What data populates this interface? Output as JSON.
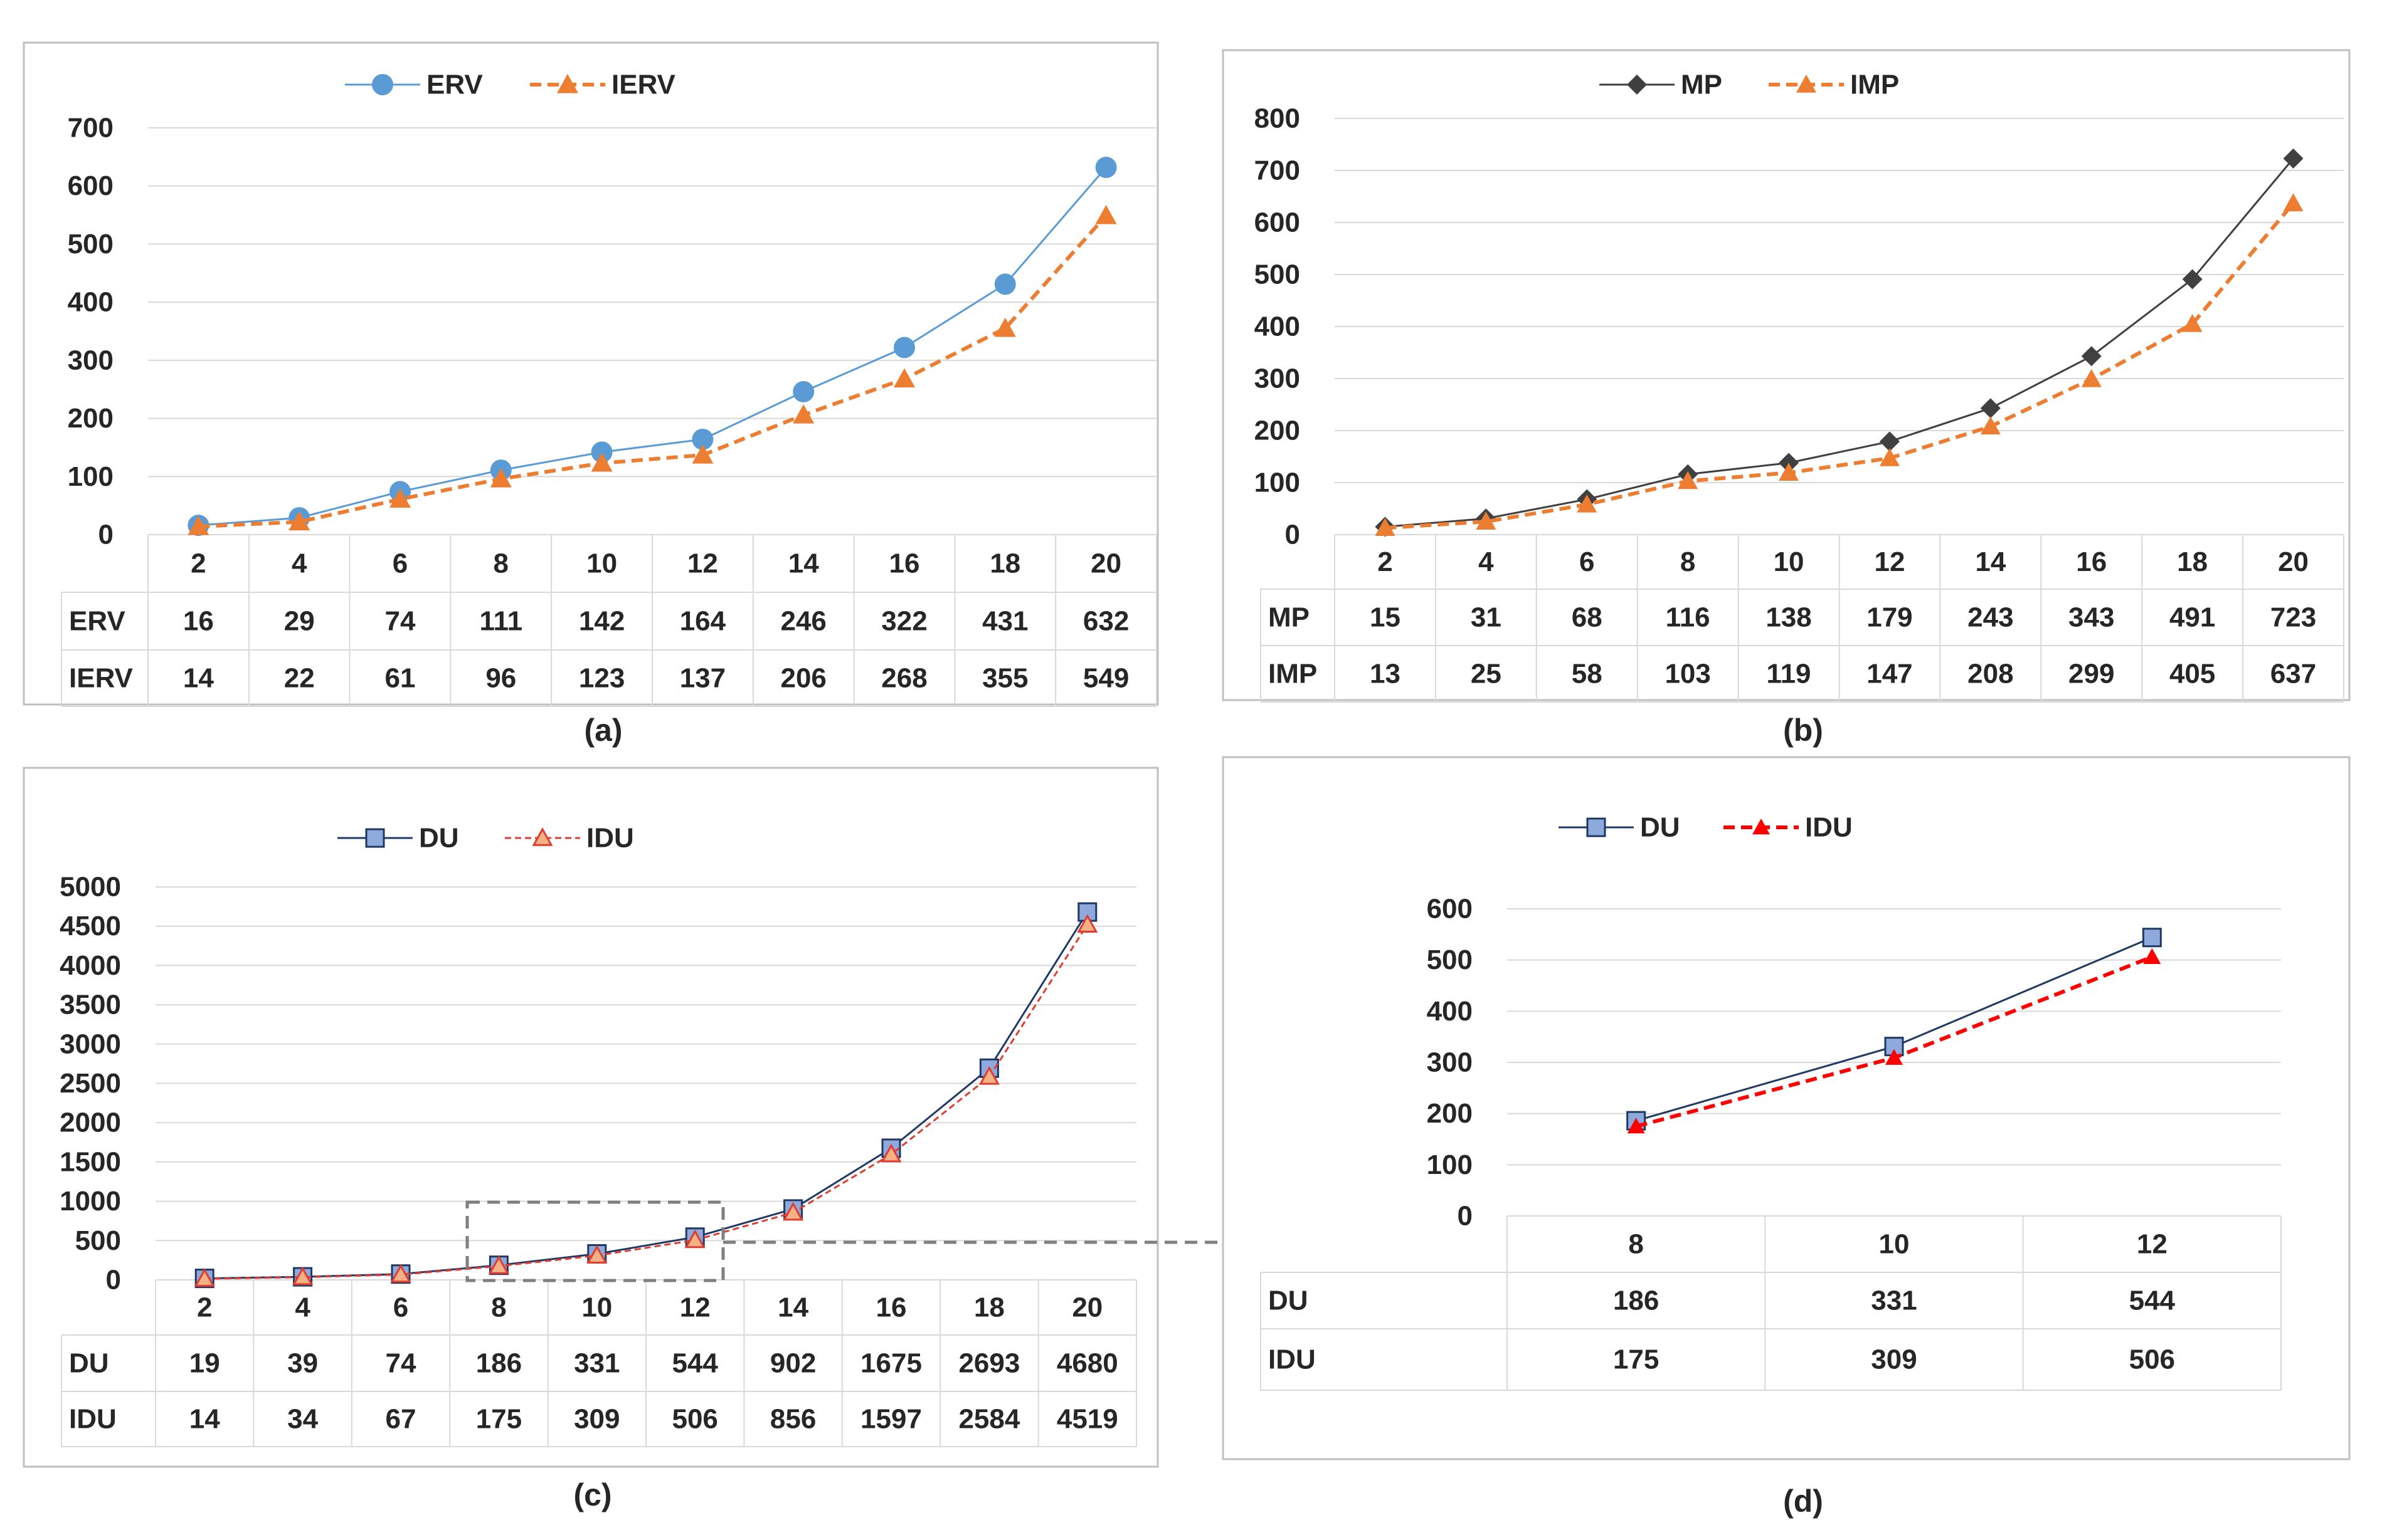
{
  "chart_data": [
    {
      "id": "a",
      "type": "line",
      "caption": "(a)",
      "categories": [
        "2",
        "4",
        "6",
        "8",
        "10",
        "12",
        "14",
        "16",
        "18",
        "20"
      ],
      "series": [
        {
          "name": "ERV",
          "values": [
            16,
            29,
            74,
            111,
            142,
            164,
            246,
            322,
            431,
            632
          ],
          "color": "#5b9bd5",
          "marker": "circle",
          "dashed": false
        },
        {
          "name": "IERV",
          "values": [
            14,
            22,
            61,
            96,
            123,
            137,
            206,
            268,
            355,
            549
          ],
          "color": "#ed7d31",
          "marker": "triangle",
          "dashed": true
        }
      ],
      "ylim": [
        0,
        700
      ],
      "yticks": [
        0,
        100,
        200,
        300,
        400,
        500,
        600,
        700
      ],
      "legend": "top",
      "grid": true,
      "data_table": true
    },
    {
      "id": "b",
      "type": "line",
      "caption": "(b)",
      "categories": [
        "2",
        "4",
        "6",
        "8",
        "10",
        "12",
        "14",
        "16",
        "18",
        "20"
      ],
      "series": [
        {
          "name": "MP",
          "values": [
            15,
            31,
            68,
            116,
            138,
            179,
            243,
            343,
            491,
            723
          ],
          "color": "#404040",
          "marker": "diamond",
          "dashed": false
        },
        {
          "name": "IMP",
          "values": [
            13,
            25,
            58,
            103,
            119,
            147,
            208,
            299,
            405,
            637
          ],
          "color": "#ed7d31",
          "marker": "triangle",
          "dashed": true
        }
      ],
      "ylim": [
        0,
        800
      ],
      "yticks": [
        0,
        100,
        200,
        300,
        400,
        500,
        600,
        700,
        800
      ],
      "legend": "top",
      "grid": true,
      "data_table": true
    },
    {
      "id": "c",
      "type": "line",
      "caption": "(c)",
      "categories": [
        "2",
        "4",
        "6",
        "8",
        "10",
        "12",
        "14",
        "16",
        "18",
        "20"
      ],
      "series": [
        {
          "name": "DU",
          "values": [
            19,
            39,
            74,
            186,
            331,
            544,
            902,
            1675,
            2693,
            4680
          ],
          "color": "#1f3864",
          "marker": "square",
          "dashed": false
        },
        {
          "name": "IDU",
          "values": [
            14,
            34,
            67,
            175,
            309,
            506,
            856,
            1597,
            2584,
            4519
          ],
          "color": "#e03c31",
          "marker": "triangle-open",
          "dashed": true
        }
      ],
      "ylim": [
        0,
        5000
      ],
      "yticks": [
        0,
        500,
        1000,
        1500,
        2000,
        2500,
        3000,
        3500,
        4000,
        4500,
        5000
      ],
      "legend": "top",
      "grid": true,
      "data_table": true
    },
    {
      "id": "d",
      "type": "line",
      "caption": "(d)",
      "categories": [
        "8",
        "10",
        "12"
      ],
      "series": [
        {
          "name": "DU",
          "values": [
            186,
            331,
            544
          ],
          "color": "#1f3864",
          "marker": "square",
          "dashed": false
        },
        {
          "name": "IDU",
          "values": [
            175,
            309,
            506
          ],
          "color": "#ff0000",
          "marker": "triangle",
          "dashed": true
        }
      ],
      "ylim": [
        0,
        600
      ],
      "yticks": [
        0,
        100,
        200,
        300,
        400,
        500,
        600
      ],
      "legend": "top",
      "grid": true,
      "data_table": true
    }
  ],
  "colors": {
    "grid": "#d9d9d9",
    "panel_border": "#bfbfbf",
    "text": "#262626",
    "zoom_box": "#7f7f7f"
  }
}
